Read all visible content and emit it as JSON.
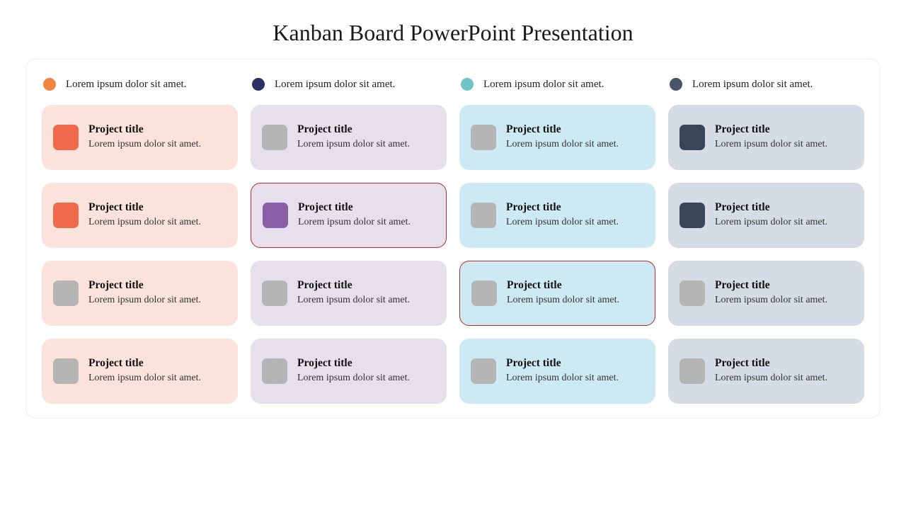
{
  "title": "Kanban Board PowerPoint Presentation",
  "defaults": {
    "card_title": "Project title",
    "card_desc": "Lorem ipsum dolor sit amet.",
    "col_label": "Lorem ipsum dolor sit amet.",
    "grey_thumb": "#b5b5b5",
    "highlight_border": "#b02a2a"
  },
  "columns": [
    {
      "dot_color": "#f2843f",
      "card_bg": "#fbe3db",
      "cards": [
        {
          "thumb": "#f0694a",
          "highlight": false
        },
        {
          "thumb": "#f0694a",
          "highlight": false
        },
        {
          "thumb": "#b5b5b5",
          "highlight": false
        },
        {
          "thumb": "#b5b5b5",
          "highlight": false
        }
      ]
    },
    {
      "dot_color": "#2e3063",
      "card_bg": "#e6dfec",
      "cards": [
        {
          "thumb": "#b5b5b5",
          "highlight": false
        },
        {
          "thumb": "#8b5fa8",
          "highlight": true
        },
        {
          "thumb": "#b5b5b5",
          "highlight": false
        },
        {
          "thumb": "#b5b5b5",
          "highlight": false
        }
      ]
    },
    {
      "dot_color": "#6fc4c9",
      "card_bg": "#cdeaf4",
      "cards": [
        {
          "thumb": "#b5b5b5",
          "highlight": false
        },
        {
          "thumb": "#b5b5b5",
          "highlight": false
        },
        {
          "thumb": "#b5b5b5",
          "highlight": true
        },
        {
          "thumb": "#b5b5b5",
          "highlight": false
        }
      ]
    },
    {
      "dot_color": "#4a5568",
      "card_bg": "#d6dce6",
      "cards": [
        {
          "thumb": "#3a4657",
          "highlight": false
        },
        {
          "thumb": "#3a4657",
          "highlight": false
        },
        {
          "thumb": "#b5b5b5",
          "highlight": false
        },
        {
          "thumb": "#b5b5b5",
          "highlight": false
        }
      ]
    }
  ]
}
